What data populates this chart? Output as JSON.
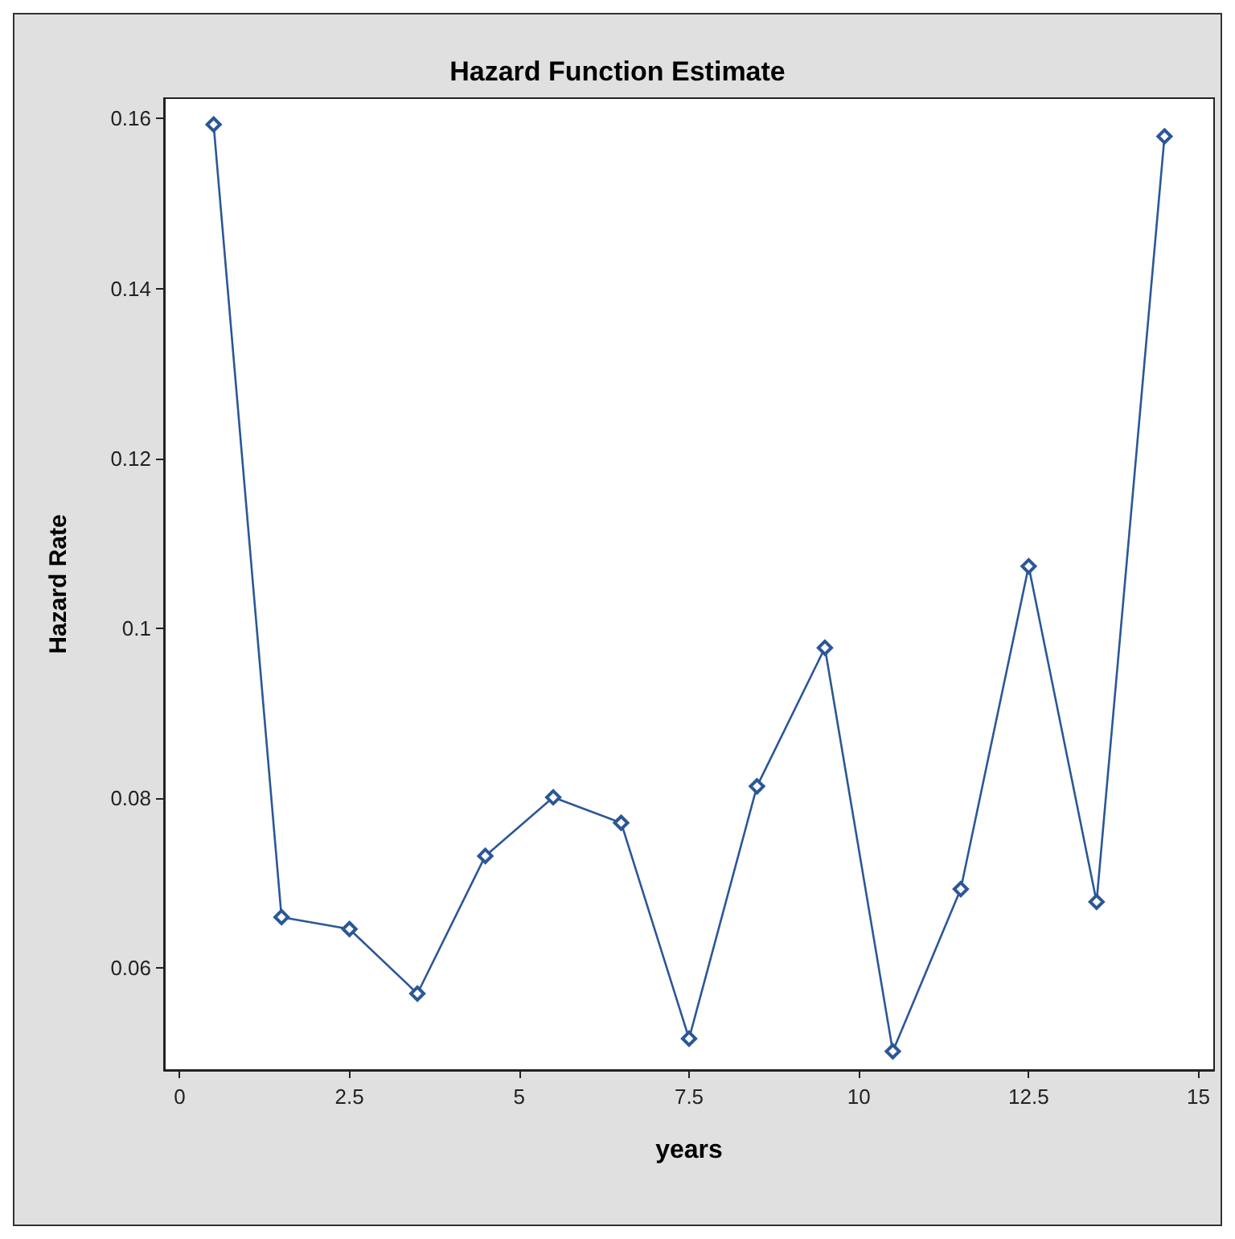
{
  "chart_data": {
    "type": "line",
    "title": "Hazard Function Estimate",
    "xlabel": "years",
    "ylabel": "Hazard Rate",
    "x": [
      0.5,
      1.5,
      2.5,
      3.5,
      4.5,
      5.5,
      6.5,
      7.5,
      8.5,
      9.5,
      10.5,
      11.5,
      12.5,
      13.5,
      14.5
    ],
    "series": [
      {
        "color": "#2b5797",
        "values": [
          0.1593,
          0.066,
          0.0646,
          0.057,
          0.0732,
          0.0801,
          0.0771,
          0.0517,
          0.0814,
          0.0977,
          0.0502,
          0.0693,
          0.1073,
          0.0678,
          0.1579
        ]
      }
    ],
    "xlim": [
      -0.23,
      15.23
    ],
    "xticks": [
      0,
      2.5,
      5,
      7.5,
      10,
      12.5,
      15
    ],
    "ylim": [
      0.048,
      0.1624
    ],
    "yticks": [
      0.06,
      0.08,
      0.1,
      0.12,
      0.14,
      0.16
    ],
    "grid": false,
    "marker": "diamond",
    "line_style": "solid"
  }
}
